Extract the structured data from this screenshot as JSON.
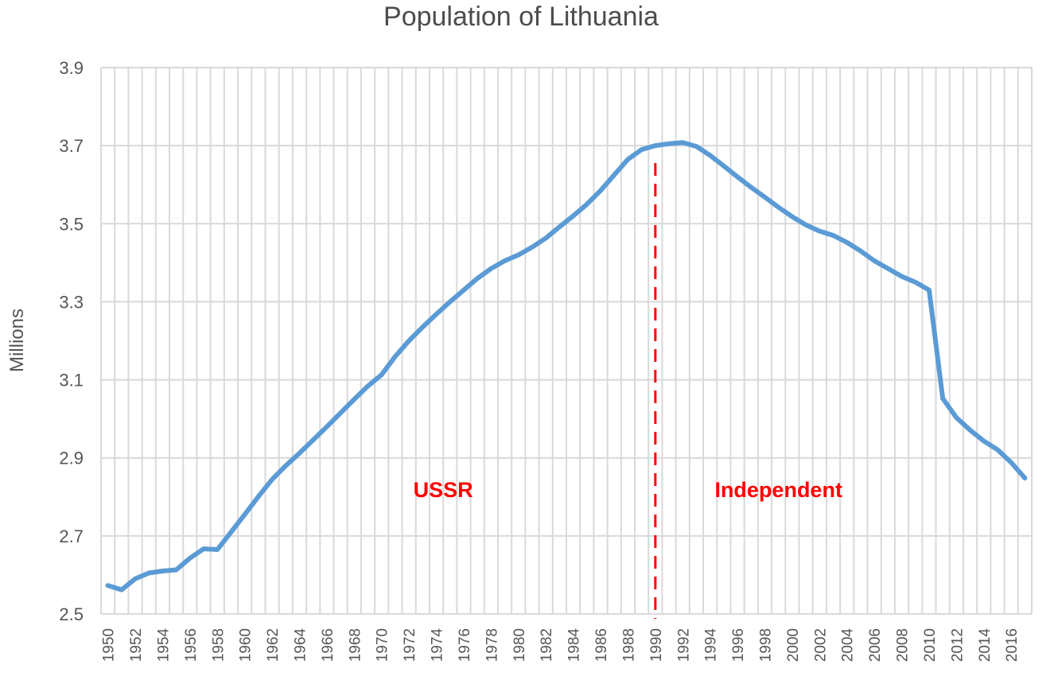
{
  "chart_data": {
    "type": "line",
    "title": "Population of Lithuania",
    "xlabel": "",
    "ylabel": "Millions",
    "ylim": [
      2.5,
      3.9
    ],
    "yticks": [
      "2.5",
      "2.7",
      "2.9",
      "3.1",
      "3.3",
      "3.5",
      "3.7",
      "3.9"
    ],
    "xlim": [
      1950,
      2017
    ],
    "xtick_labels": [
      "1950",
      "1952",
      "1954",
      "1956",
      "1958",
      "1960",
      "1962",
      "1964",
      "1966",
      "1968",
      "1970",
      "1972",
      "1974",
      "1976",
      "1978",
      "1980",
      "1982",
      "1984",
      "1986",
      "1988",
      "1990",
      "1992",
      "1994",
      "1996",
      "1998",
      "2000",
      "2002",
      "2004",
      "2006",
      "2008",
      "2010",
      "2012",
      "2014",
      "2016"
    ],
    "grid": true,
    "line_color": "#5b9bd5",
    "marker_line": {
      "x": 1990.5,
      "color": "#ff0000",
      "style": "dashed"
    },
    "annotations": [
      {
        "text": "USSR",
        "x": 1975,
        "y": 2.82
      },
      {
        "text": "Independent",
        "x": 1999.5,
        "y": 2.82
      }
    ],
    "series": [
      {
        "x": [
          1950,
          1951,
          1952,
          1953,
          1954,
          1955,
          1956,
          1957,
          1958,
          1959,
          1960,
          1961,
          1962,
          1963,
          1964,
          1965,
          1966,
          1967,
          1968,
          1969,
          1970,
          1971,
          1972,
          1973,
          1974,
          1975,
          1976,
          1977,
          1978,
          1979,
          1980,
          1981,
          1982,
          1983,
          1984,
          1985,
          1986,
          1987,
          1988,
          1989,
          1990,
          1991,
          1992,
          1993,
          1994,
          1995,
          1996,
          1997,
          1998,
          1999,
          2000,
          2001,
          2002,
          2003,
          2004,
          2005,
          2006,
          2007,
          2008,
          2009,
          2010,
          2011,
          2012,
          2013,
          2014,
          2015,
          2016,
          2017
        ],
        "values": [
          2.573,
          2.562,
          2.59,
          2.605,
          2.61,
          2.613,
          2.643,
          2.667,
          2.665,
          2.71,
          2.755,
          2.801,
          2.845,
          2.88,
          2.912,
          2.946,
          2.98,
          3.015,
          3.05,
          3.084,
          3.113,
          3.16,
          3.2,
          3.235,
          3.268,
          3.3,
          3.33,
          3.36,
          3.385,
          3.405,
          3.42,
          3.44,
          3.463,
          3.492,
          3.52,
          3.55,
          3.585,
          3.625,
          3.665,
          3.69,
          3.7,
          3.705,
          3.708,
          3.698,
          3.675,
          3.648,
          3.62,
          3.593,
          3.568,
          3.542,
          3.518,
          3.497,
          3.481,
          3.47,
          3.452,
          3.43,
          3.405,
          3.385,
          3.365,
          3.35,
          3.33,
          3.052,
          3.003,
          2.971,
          2.943,
          2.921,
          2.888,
          2.848
        ]
      }
    ]
  }
}
